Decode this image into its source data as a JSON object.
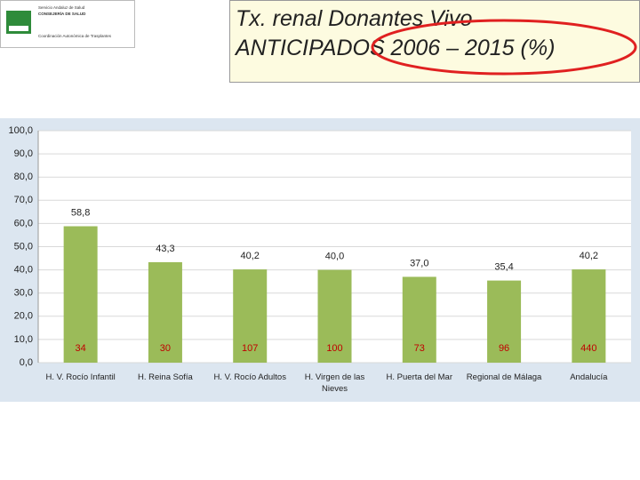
{
  "logo": {
    "lines": [
      "Servicio Andaluz de Salud",
      "CONSEJERÍA DE SALUD",
      "Coordinación Autonómica de Trasplantes"
    ]
  },
  "chart_data": {
    "type": "bar",
    "title_lines": [
      "Tx. renal Donantes Vivo",
      "ANTICIPADOS 2006 – 2015 (%)"
    ],
    "categories": [
      "H. V. Rocío Infantil",
      "H. Reina Sofía",
      "H. V. Rocío Adultos",
      "H. Virgen de las Nieves",
      "H. Puerta del Mar",
      "Regional de Málaga",
      "Andalucía"
    ],
    "values": [
      58.8,
      43.3,
      40.2,
      40.0,
      37.0,
      35.4,
      40.2
    ],
    "value_labels": [
      "58,8",
      "43,3",
      "40,2",
      "40,0",
      "37,0",
      "35,4",
      "40,2"
    ],
    "bar_annotations": [
      "34",
      "30",
      "107",
      "100",
      "73",
      "96",
      "440"
    ],
    "color": "#9bbb59",
    "annotation_color": "#c00000",
    "ylim": [
      0,
      100
    ],
    "yticks": [
      {
        "value": 0,
        "label": "0,0"
      },
      {
        "value": 10,
        "label": "10,0"
      },
      {
        "value": 20,
        "label": "20,0"
      },
      {
        "value": 30,
        "label": "30,0"
      },
      {
        "value": 40,
        "label": "40,0"
      },
      {
        "value": 50,
        "label": "50,0"
      },
      {
        "value": 60,
        "label": "60,0"
      },
      {
        "value": 70,
        "label": "70,0"
      },
      {
        "value": 80,
        "label": "80,0"
      },
      {
        "value": 90,
        "label": "90,0"
      },
      {
        "value": 100,
        "label": "100,0"
      }
    ],
    "grid": true
  }
}
